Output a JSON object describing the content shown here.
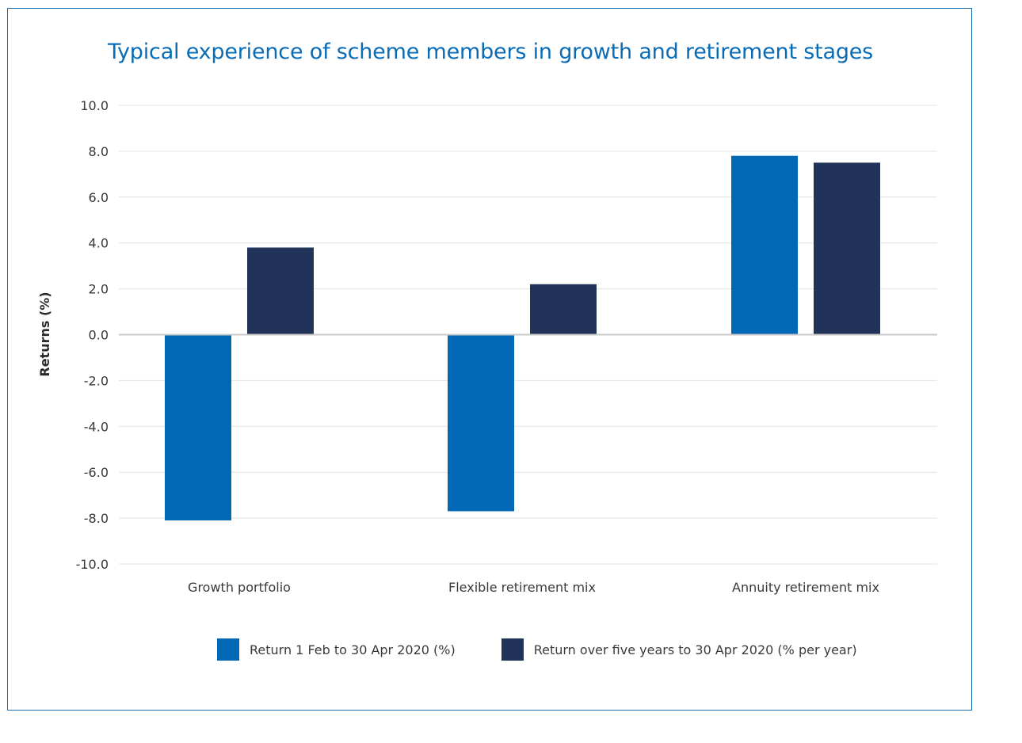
{
  "chart_data": {
    "type": "bar",
    "title": "Typical experience of scheme members in growth and retirement stages",
    "xlabel": "",
    "ylabel": "Returns (%)",
    "ylim": [
      -10,
      10
    ],
    "yticks": [
      10,
      8,
      6,
      4,
      2,
      0,
      -2,
      -4,
      -6,
      -8,
      -10
    ],
    "ytick_labels": [
      "10.0",
      "8.0",
      "6.0",
      "4.0",
      "2.0",
      "0.0",
      "-2.0",
      "-4.0",
      "-6.0",
      "-8.0",
      "-10.0"
    ],
    "categories": [
      "Growth portfolio",
      "Flexible retirement mix",
      "Annuity retirement mix"
    ],
    "series": [
      {
        "name": "Return 1 Feb to 30 Apr 2020 (%)",
        "values": [
          -8.1,
          -7.7,
          7.8
        ],
        "color": "#0068b4"
      },
      {
        "name": "Return over five years to 30 Apr 2020 (% per year)",
        "values": [
          3.8,
          2.2,
          7.5
        ],
        "color": "#213359"
      }
    ],
    "grid": true,
    "legend": "bottom"
  }
}
